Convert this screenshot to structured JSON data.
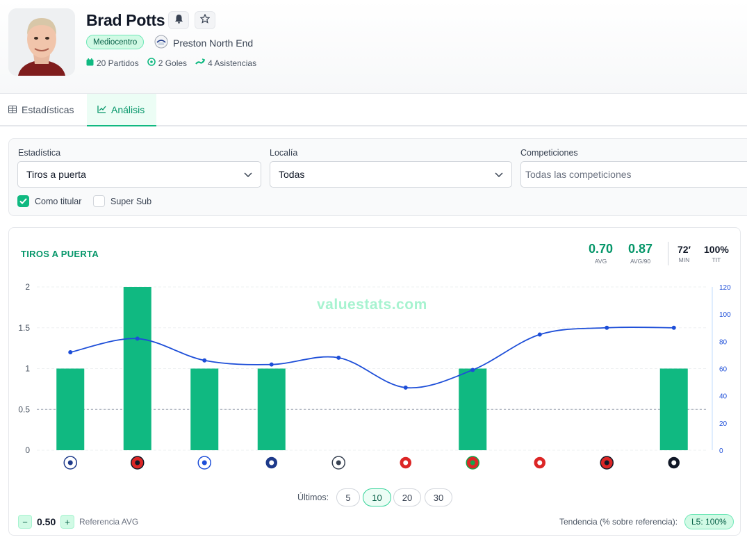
{
  "player": {
    "name": "Brad Potts",
    "position": "Mediocentro",
    "team": "Preston North End",
    "matches": "20 Partidos",
    "goals": "2 Goles",
    "assists": "4 Asistencias",
    "icons": [
      "bell-icon",
      "star-icon",
      "calendar-icon",
      "ball-icon",
      "assist-icon"
    ]
  },
  "tabs": [
    {
      "label": "Estadísticas",
      "icon": "table-icon",
      "active": false
    },
    {
      "label": "Análisis",
      "icon": "line-chart-icon",
      "active": true
    }
  ],
  "filters": {
    "stat_label": "Estadística",
    "stat_value": "Tiros a puerta",
    "venue_label": "Localía",
    "venue_value": "Todas",
    "comp_label": "Competiciones",
    "comp_placeholder": "Todas las competiciones",
    "starter_label": "Como titular",
    "starter_checked": true,
    "supersub_label": "Super Sub",
    "supersub_checked": false
  },
  "summary": {
    "title": "TIROS A PUERTA",
    "avg": "0.70",
    "avg_label": "AVG",
    "avg90": "0.87",
    "avg90_label": "AVG/90",
    "minutes": "72′",
    "minutes_label": "MIN",
    "starter_pct": "100%",
    "starter_label": "TIT",
    "watermark": "valuestats.com"
  },
  "controls": {
    "last_label": "Últimos:",
    "options": [
      "5",
      "10",
      "20",
      "30"
    ],
    "selected": "10",
    "ref_value": "0.50",
    "ref_label": "Referencia AVG",
    "minus": "−",
    "plus": "+",
    "trend_label": "Tendencia (% sobre referencia):",
    "trend_value": "L5: 100%"
  },
  "colors": {
    "accent": "#10b981",
    "accent_dark": "#059669",
    "line": "#1d4ed8"
  },
  "chart_data": {
    "type": "bar",
    "title": "TIROS A PUERTA",
    "categories": [
      "West Bromwich Albion",
      "Charlton Athletic",
      "Queens Park Rangers",
      "Millwall",
      "Derby County",
      "Bristol City",
      "Wrexham",
      "Sunderland",
      "Sheffield United",
      "Swansea City"
    ],
    "series": [
      {
        "values": [
          1,
          2,
          1,
          1,
          0,
          0,
          1,
          0,
          0,
          1
        ]
      },
      {
        "type": "line",
        "axis": "right",
        "values": [
          72,
          82,
          66,
          63,
          68,
          46,
          59,
          85,
          90,
          90
        ]
      }
    ],
    "y_ticks": [
      "0",
      "0.5",
      "1",
      "1.5",
      "2"
    ],
    "y2_ticks": [
      "0",
      "20",
      "40",
      "60",
      "80",
      "100",
      "120"
    ],
    "ylim": [
      0,
      2
    ],
    "y2lim": [
      0,
      120
    ],
    "reference_line": 0.5,
    "grid": true
  }
}
